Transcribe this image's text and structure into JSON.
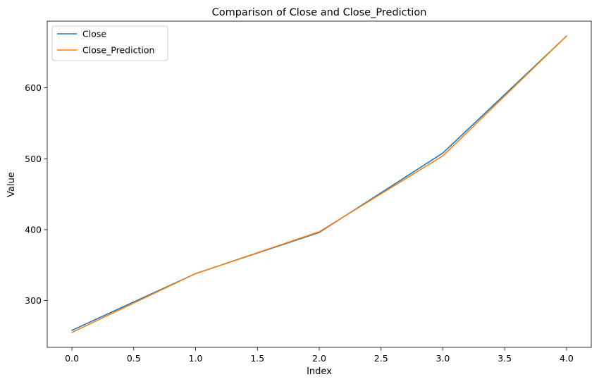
{
  "chart_data": {
    "type": "line",
    "title": "Comparison of Close and Close_Prediction",
    "xlabel": "Index",
    "ylabel": "Value",
    "x": [
      0,
      1,
      2,
      3,
      4
    ],
    "series": [
      {
        "name": "Close",
        "color": "#1f77b4",
        "values": [
          258,
          338,
          396,
          508,
          673
        ]
      },
      {
        "name": "Close_Prediction",
        "color": "#ff7f0e",
        "values": [
          255,
          338,
          397,
          504,
          673
        ]
      }
    ],
    "xlim": [
      -0.2,
      4.2
    ],
    "ylim": [
      234,
      694
    ],
    "xticks": [
      "0.0",
      "0.5",
      "1.0",
      "1.5",
      "2.0",
      "2.5",
      "3.0",
      "3.5",
      "4.0"
    ],
    "yticks": [
      "300",
      "400",
      "500",
      "600"
    ],
    "grid": false,
    "legend_position": "top-left"
  }
}
